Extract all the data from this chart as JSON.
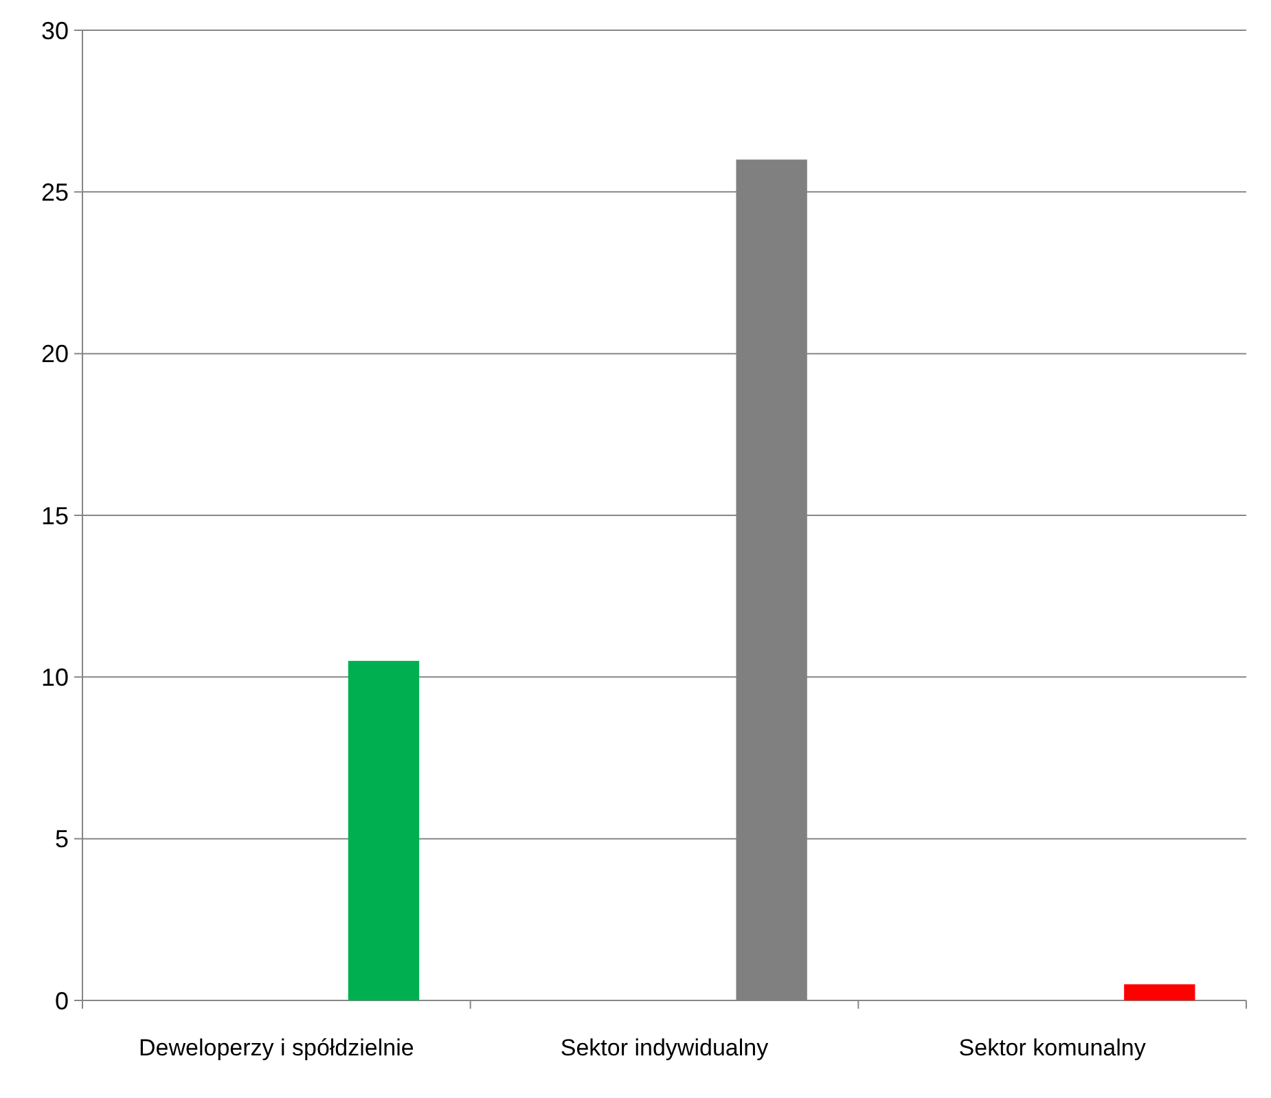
{
  "chart_data": {
    "type": "bar",
    "categories": [
      "Deweloperzy i spółdzielnie",
      "Sektor indywidualny",
      "Sektor komunalny"
    ],
    "values": [
      10.5,
      26,
      0.5
    ],
    "colors": [
      "#00b050",
      "#808080",
      "#ff0000"
    ],
    "ylim": [
      0,
      30
    ],
    "yticks": [
      0,
      5,
      10,
      15,
      20,
      25,
      30
    ],
    "grid": "y"
  }
}
